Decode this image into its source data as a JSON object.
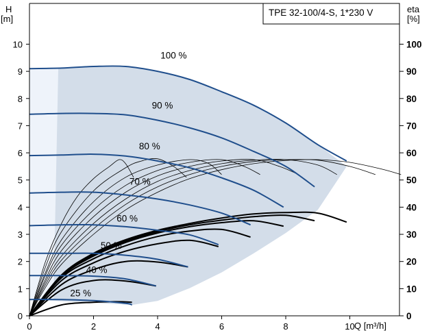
{
  "chart_data": {
    "type": "line",
    "title": "TPE 32-100/4-S, 1*230 V",
    "xlabel": "Q [m³/h]",
    "ylabel_top": "H",
    "ylabel_unit": "[m]",
    "y2label_top": "eta",
    "y2label_unit": "[%]",
    "xlim": [
      0,
      11.55
    ],
    "ylim": [
      0,
      11.5
    ],
    "y2lim": [
      0,
      115
    ],
    "x_ticks": [
      "0",
      "2",
      "4",
      "6",
      "8",
      "10"
    ],
    "y_ticks": [
      "0",
      "1",
      "2",
      "3",
      "4",
      "5",
      "6",
      "7",
      "8",
      "9",
      "10"
    ],
    "y2_ticks": [
      "0",
      "10",
      "20",
      "30",
      "40",
      "50",
      "60",
      "70",
      "80",
      "90",
      "100"
    ],
    "grid": false,
    "colors": {
      "head_curve": "#1f4e8c",
      "efficiency_curve": "#000000",
      "operating_area": "#d3dde9",
      "low_flow_area": "#eef3fa"
    },
    "operating_area": {
      "upper": [
        [
          0,
          9.1
        ],
        [
          1,
          9.12
        ],
        [
          2,
          9.18
        ],
        [
          3,
          9.18
        ],
        [
          4,
          9.0
        ],
        [
          5,
          8.7
        ],
        [
          6,
          8.25
        ],
        [
          7,
          7.75
        ],
        [
          8,
          7.1
        ],
        [
          9,
          6.3
        ],
        [
          9.9,
          5.5
        ]
      ],
      "lower": [
        [
          0,
          0.6
        ],
        [
          3.2,
          0.4
        ],
        [
          4,
          0.55
        ],
        [
          5,
          1.02
        ],
        [
          6,
          1.6
        ],
        [
          7,
          2.3
        ],
        [
          8,
          3.05
        ],
        [
          9,
          3.9
        ],
        [
          9.9,
          5.5
        ]
      ]
    },
    "head_curves": [
      {
        "label": "100 %",
        "points": [
          [
            0,
            9.1
          ],
          [
            1,
            9.12
          ],
          [
            2,
            9.18
          ],
          [
            3,
            9.18
          ],
          [
            4,
            9.0
          ],
          [
            5,
            8.7
          ],
          [
            6,
            8.25
          ],
          [
            7,
            7.75
          ],
          [
            8,
            7.1
          ],
          [
            9,
            6.3
          ],
          [
            9.9,
            5.7
          ]
        ]
      },
      {
        "label": "90 %",
        "points": [
          [
            0,
            7.42
          ],
          [
            1,
            7.45
          ],
          [
            2,
            7.45
          ],
          [
            3,
            7.4
          ],
          [
            4,
            7.2
          ],
          [
            5,
            6.92
          ],
          [
            6,
            6.55
          ],
          [
            7,
            6.05
          ],
          [
            8,
            5.5
          ],
          [
            8.9,
            4.75
          ]
        ]
      },
      {
        "label": "80 %",
        "points": [
          [
            0,
            5.9
          ],
          [
            1,
            5.92
          ],
          [
            2,
            5.95
          ],
          [
            3,
            5.88
          ],
          [
            4,
            5.7
          ],
          [
            5,
            5.45
          ],
          [
            6,
            5.08
          ],
          [
            7,
            4.62
          ],
          [
            7.93,
            4.0
          ]
        ]
      },
      {
        "label": "70 %",
        "points": [
          [
            0,
            4.52
          ],
          [
            1,
            4.55
          ],
          [
            2,
            4.55
          ],
          [
            3,
            4.45
          ],
          [
            4,
            4.3
          ],
          [
            5,
            4.08
          ],
          [
            6,
            3.78
          ],
          [
            6.9,
            3.35
          ]
        ]
      },
      {
        "label": "60 %",
        "points": [
          [
            0,
            3.32
          ],
          [
            1,
            3.35
          ],
          [
            2,
            3.35
          ],
          [
            3,
            3.28
          ],
          [
            4,
            3.15
          ],
          [
            5,
            2.98
          ],
          [
            5.9,
            2.62
          ]
        ]
      },
      {
        "label": "50 %",
        "points": [
          [
            0,
            2.3
          ],
          [
            1,
            2.3
          ],
          [
            2,
            2.3
          ],
          [
            3,
            2.23
          ],
          [
            4,
            2.08
          ],
          [
            4.95,
            1.8
          ]
        ]
      },
      {
        "label": "40 %",
        "points": [
          [
            0,
            1.48
          ],
          [
            1,
            1.48
          ],
          [
            2,
            1.46
          ],
          [
            3,
            1.36
          ],
          [
            3.95,
            1.1
          ]
        ]
      },
      {
        "label": "25 %",
        "points": [
          [
            0,
            0.6
          ],
          [
            1,
            0.6
          ],
          [
            2,
            0.56
          ],
          [
            3,
            0.46
          ],
          [
            3.2,
            0.4
          ]
        ]
      }
    ],
    "efficiency_curves": [
      {
        "label": "100 %",
        "points": [
          [
            0,
            0
          ],
          [
            1,
            15
          ],
          [
            2,
            23
          ],
          [
            3,
            28
          ],
          [
            4,
            31.5
          ],
          [
            5,
            34
          ],
          [
            6,
            36
          ],
          [
            7,
            37.5
          ],
          [
            8,
            38
          ],
          [
            9,
            37.8
          ],
          [
            9.9,
            34.5
          ]
        ]
      },
      {
        "label": "90 %",
        "points": [
          [
            0,
            0
          ],
          [
            1,
            15
          ],
          [
            2,
            22.5
          ],
          [
            3,
            27.5
          ],
          [
            4,
            31
          ],
          [
            5,
            33.5
          ],
          [
            6,
            35.2
          ],
          [
            7,
            36.5
          ],
          [
            8,
            37
          ],
          [
            8.9,
            35
          ]
        ]
      },
      {
        "label": "80 %",
        "points": [
          [
            0,
            0
          ],
          [
            1,
            14.5
          ],
          [
            2,
            22
          ],
          [
            3,
            27
          ],
          [
            4,
            30.5
          ],
          [
            5,
            32.8
          ],
          [
            6,
            34.3
          ],
          [
            7,
            35
          ],
          [
            7.93,
            33
          ]
        ]
      },
      {
        "label": "70 %",
        "points": [
          [
            0,
            0
          ],
          [
            1,
            14
          ],
          [
            2,
            21
          ],
          [
            3,
            25.8
          ],
          [
            4,
            29.2
          ],
          [
            5,
            31.2
          ],
          [
            6,
            31.8
          ],
          [
            6.9,
            29
          ]
        ]
      },
      {
        "label": "60 %",
        "points": [
          [
            0,
            0
          ],
          [
            1,
            13
          ],
          [
            2,
            19.5
          ],
          [
            3,
            23.8
          ],
          [
            4,
            26.5
          ],
          [
            5,
            27.8
          ],
          [
            5.9,
            25.5
          ]
        ]
      },
      {
        "label": "50 %",
        "points": [
          [
            0,
            0
          ],
          [
            1,
            11.5
          ],
          [
            2,
            17
          ],
          [
            3,
            20
          ],
          [
            4,
            19.8
          ],
          [
            4.95,
            18
          ]
        ]
      },
      {
        "label": "40 %",
        "points": [
          [
            0,
            0
          ],
          [
            1,
            9.5
          ],
          [
            2,
            13
          ],
          [
            3,
            12.8
          ],
          [
            3.95,
            11
          ]
        ]
      },
      {
        "label": "25 %",
        "points": [
          [
            0,
            0
          ],
          [
            1,
            4
          ],
          [
            2,
            5
          ],
          [
            2.7,
            5.2
          ],
          [
            3.2,
            5
          ]
        ]
      }
    ],
    "thin_efficiency_curves": [
      {
        "points": [
          [
            0,
            0
          ],
          [
            0.5,
            20
          ],
          [
            1,
            34
          ],
          [
            1.5,
            44
          ],
          [
            2,
            50.5
          ],
          [
            2.5,
            55
          ],
          [
            2.8,
            57.5
          ],
          [
            3,
            56
          ],
          [
            3.25,
            51
          ]
        ]
      },
      {
        "points": [
          [
            0,
            0
          ],
          [
            0.5,
            18
          ],
          [
            1,
            31
          ],
          [
            2,
            46
          ],
          [
            3,
            54.5
          ],
          [
            3.5,
            57
          ],
          [
            4,
            57.8
          ],
          [
            4.5,
            55
          ],
          [
            4.9,
            51
          ]
        ]
      },
      {
        "points": [
          [
            0,
            0
          ],
          [
            0.5,
            16
          ],
          [
            1,
            28
          ],
          [
            2,
            42
          ],
          [
            3,
            51
          ],
          [
            4,
            55.5
          ],
          [
            5,
            57.5
          ],
          [
            5.6,
            56
          ],
          [
            6,
            52
          ]
        ]
      },
      {
        "points": [
          [
            0,
            0
          ],
          [
            0.5,
            15
          ],
          [
            1,
            26
          ],
          [
            2,
            39
          ],
          [
            3,
            48
          ],
          [
            4,
            53.5
          ],
          [
            5,
            56.5
          ],
          [
            6,
            57.5
          ],
          [
            6.7,
            55
          ],
          [
            7.2,
            52
          ]
        ]
      },
      {
        "points": [
          [
            0,
            0
          ],
          [
            0.5,
            13.5
          ],
          [
            1,
            24
          ],
          [
            2,
            36.5
          ],
          [
            3,
            45.5
          ],
          [
            4,
            51.5
          ],
          [
            5,
            55
          ],
          [
            6,
            57
          ],
          [
            7,
            57.5
          ],
          [
            7.8,
            55
          ],
          [
            8.4,
            52
          ]
        ]
      },
      {
        "points": [
          [
            0,
            0
          ],
          [
            0.5,
            12.5
          ],
          [
            1,
            22
          ],
          [
            2,
            34
          ],
          [
            3,
            43
          ],
          [
            4,
            49.5
          ],
          [
            5,
            53.5
          ],
          [
            6,
            56
          ],
          [
            7,
            57.3
          ],
          [
            8,
            57.5
          ],
          [
            9,
            55.5
          ],
          [
            9.6,
            52
          ]
        ]
      },
      {
        "points": [
          [
            0,
            0
          ],
          [
            0.5,
            11.5
          ],
          [
            1,
            20.5
          ],
          [
            2,
            32
          ],
          [
            3,
            41
          ],
          [
            4,
            47.5
          ],
          [
            5,
            52
          ],
          [
            6,
            55
          ],
          [
            7,
            56.8
          ],
          [
            8,
            57.5
          ],
          [
            9,
            57.3
          ],
          [
            10,
            55
          ],
          [
            10.8,
            52
          ]
        ]
      },
      {
        "points": [
          [
            0,
            0
          ],
          [
            0.5,
            10.5
          ],
          [
            1,
            19
          ],
          [
            2,
            30
          ],
          [
            3,
            39
          ],
          [
            4,
            45.5
          ],
          [
            5,
            50.5
          ],
          [
            6,
            53.8
          ],
          [
            7,
            56
          ],
          [
            8,
            57.2
          ],
          [
            9,
            57.5
          ],
          [
            10,
            56.5
          ],
          [
            11,
            54
          ],
          [
            11.6,
            52
          ]
        ]
      }
    ],
    "curve_labels": [
      {
        "text": "100 %",
        "x": 4.5,
        "y": 9.6
      },
      {
        "text": "90 %",
        "x": 4.15,
        "y": 7.75
      },
      {
        "text": "80 %",
        "x": 3.75,
        "y": 6.25
      },
      {
        "text": "70 %",
        "x": 3.45,
        "y": 4.95
      },
      {
        "text": "60 %",
        "x": 3.05,
        "y": 3.6
      },
      {
        "text": "50 %",
        "x": 2.55,
        "y": 2.6
      },
      {
        "text": "40 %",
        "x": 2.1,
        "y": 1.7
      },
      {
        "text": "25 %",
        "x": 1.6,
        "y": 0.85
      }
    ]
  }
}
